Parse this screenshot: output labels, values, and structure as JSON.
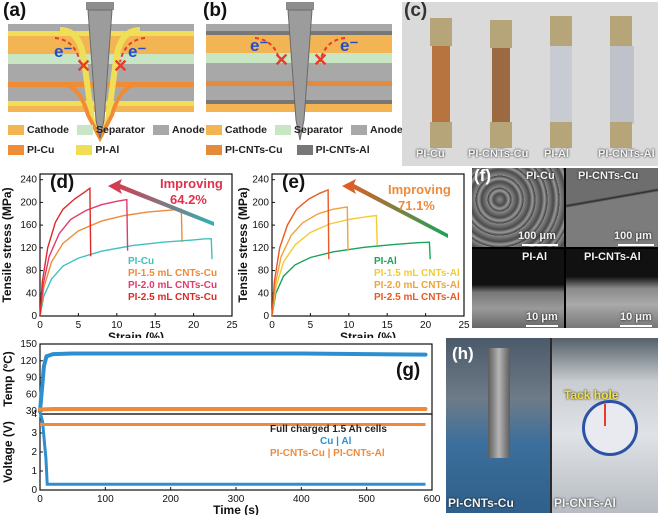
{
  "panels": {
    "a": {
      "label": "(a)",
      "electron_label": "e⁻"
    },
    "b": {
      "label": "(b)",
      "electron_label": "e⁻"
    },
    "c": {
      "label": "(c)",
      "photos": [
        "PI-Cu",
        "PI-CNTs-Cu",
        "PI-Al",
        "PI-CNTs-Al"
      ]
    },
    "d": {
      "label": "(d)",
      "annotation_line1": "Improving",
      "annotation_line2": "64.2%"
    },
    "e": {
      "label": "(e)",
      "annotation_line1": "Improving",
      "annotation_line2": "71.1%"
    },
    "f": {
      "label": "(f)",
      "tiles": [
        {
          "name": "PI-Cu",
          "scale": "100 μm"
        },
        {
          "name": "PI-CNTs-Cu",
          "scale": "100 μm"
        },
        {
          "name": "PI-Al",
          "scale": "10 μm"
        },
        {
          "name": "PI-CNTs-Al",
          "scale": "10 μm"
        }
      ]
    },
    "g": {
      "label": "(g)"
    },
    "h": {
      "label": "(h)",
      "tack_hole": "Tack hole",
      "left_caption": "PI-CNTs-Cu",
      "right_caption": "PI-CNTs-Al"
    }
  },
  "legend_top": {
    "left": [
      {
        "label": "Cathode",
        "color": "#f3b553"
      },
      {
        "label": "Separator",
        "color": "#c8e6c3"
      },
      {
        "label": "Anode",
        "color": "#a8a8a8"
      },
      {
        "label": "PI-Cu",
        "color": "#f08c34"
      },
      {
        "label": "PI-Al",
        "color": "#f1de57"
      }
    ],
    "right": [
      {
        "label": "Cathode",
        "color": "#f3b553"
      },
      {
        "label": "Separator",
        "color": "#c8e6c3"
      },
      {
        "label": "Anode",
        "color": "#a8a8a8"
      },
      {
        "label": "PI-CNTs-Cu",
        "color": "#e38a3b"
      },
      {
        "label": "PI-CNTs-Al",
        "color": "#777777"
      }
    ]
  },
  "chart_data": [
    {
      "type": "line",
      "panel": "d",
      "xlabel": "Strain (%)",
      "ylabel": "Tensile stress (MPa)",
      "xlim": [
        0,
        25
      ],
      "ylim": [
        0,
        250
      ],
      "xticks": [
        0,
        5,
        10,
        15,
        20,
        25
      ],
      "yticks": [
        0,
        40,
        80,
        120,
        160,
        200,
        240
      ],
      "series": [
        {
          "name": "PI-Cu",
          "color": "#3fc2bf",
          "points": [
            [
              0,
              0
            ],
            [
              0.5,
              35
            ],
            [
              1.5,
              65
            ],
            [
              3,
              88
            ],
            [
              5,
              102
            ],
            [
              8,
              114
            ],
            [
              12,
              124
            ],
            [
              16,
              130
            ],
            [
              20,
              134
            ],
            [
              21.5,
              136
            ],
            [
              22.3,
              136
            ],
            [
              22.4,
              100
            ]
          ]
        },
        {
          "name": "PI-1.5 mL CNTs-Cu",
          "color": "#f08a3a",
          "points": [
            [
              0,
              0
            ],
            [
              0.5,
              50
            ],
            [
              1.5,
              95
            ],
            [
              3,
              128
            ],
            [
              5,
              150
            ],
            [
              8,
              167
            ],
            [
              11,
              177
            ],
            [
              14,
              183
            ],
            [
              16.5,
              186
            ],
            [
              18.4,
              188
            ],
            [
              18.5,
              130
            ]
          ]
        },
        {
          "name": "PI-2.0 mL CNTs-Cu",
          "color": "#e23a6a",
          "points": [
            [
              0,
              0
            ],
            [
              0.4,
              55
            ],
            [
              1.2,
              105
            ],
            [
              2.5,
              145
            ],
            [
              4,
              170
            ],
            [
              6,
              186
            ],
            [
              8,
              196
            ],
            [
              10,
              202
            ],
            [
              11.3,
              205
            ],
            [
              11.4,
              115
            ]
          ]
        },
        {
          "name": "PI-2.5 mL CNTs-Cu",
          "color": "#dc2a2a",
          "points": [
            [
              0,
              0
            ],
            [
              0.3,
              60
            ],
            [
              1,
              120
            ],
            [
              2,
              165
            ],
            [
              3,
              188
            ],
            [
              4.5,
              206
            ],
            [
              5.8,
              218
            ],
            [
              6.5,
              225
            ],
            [
              6.6,
              105
            ]
          ]
        }
      ]
    },
    {
      "type": "line",
      "panel": "e",
      "xlabel": "Strain (%)",
      "ylabel": "Tensile stress (MPa)",
      "xlim": [
        0,
        25
      ],
      "ylim": [
        0,
        250
      ],
      "xticks": [
        0,
        5,
        10,
        15,
        20,
        25
      ],
      "yticks": [
        0,
        40,
        80,
        120,
        160,
        200,
        240
      ],
      "series": [
        {
          "name": "PI-Al",
          "color": "#1aa35a",
          "points": [
            [
              0,
              0
            ],
            [
              0.5,
              40
            ],
            [
              1.5,
              70
            ],
            [
              3,
              90
            ],
            [
              5,
              103
            ],
            [
              8,
              113
            ],
            [
              12,
              121
            ],
            [
              16,
              126
            ],
            [
              19,
              129
            ],
            [
              20.5,
              130
            ],
            [
              20.6,
              100
            ]
          ]
        },
        {
          "name": "PI-1.5 mL CNTs-Al",
          "color": "#f2cc30",
          "points": [
            [
              0,
              0
            ],
            [
              0.5,
              50
            ],
            [
              1.5,
              95
            ],
            [
              3,
              125
            ],
            [
              5,
              147
            ],
            [
              7.5,
              162
            ],
            [
              10,
              170
            ],
            [
              12.5,
              175
            ],
            [
              13.6,
              177
            ],
            [
              13.7,
              125
            ]
          ]
        },
        {
          "name": "PI-2.0 mL CNTs-Al",
          "color": "#f0a33a",
          "points": [
            [
              0,
              0
            ],
            [
              0.4,
              55
            ],
            [
              1.2,
              105
            ],
            [
              2.5,
              142
            ],
            [
              4,
              164
            ],
            [
              6,
              180
            ],
            [
              8,
              188
            ],
            [
              9.8,
              192
            ],
            [
              9.9,
              115
            ]
          ]
        },
        {
          "name": "PI-2.5 mL CNTs-Al",
          "color": "#ea5a23",
          "points": [
            [
              0,
              0
            ],
            [
              0.3,
              60
            ],
            [
              1,
              120
            ],
            [
              2,
              160
            ],
            [
              3.2,
              188
            ],
            [
              4.8,
              206
            ],
            [
              6.2,
              216
            ],
            [
              7.3,
              222
            ],
            [
              7.4,
              100
            ]
          ]
        }
      ]
    },
    {
      "type": "scatter",
      "panel": "g",
      "xlabel": "Time (s)",
      "ylabel_top": "Temp (ºC)",
      "ylabel_bottom": "Voltage (V)",
      "xlim": [
        0,
        600
      ],
      "xticks": [
        0,
        100,
        200,
        300,
        400,
        500,
        600
      ],
      "temp_ylim": [
        25,
        150
      ],
      "temp_yticks": [
        30,
        60,
        90,
        120,
        150
      ],
      "volt_ylim": [
        0,
        4
      ],
      "volt_yticks": [
        0,
        1,
        2,
        3,
        4
      ],
      "legend_title": "Full charged 1.5 Ah cells",
      "legend_line2_a": "Cu",
      "legend_line2_b": "Al",
      "legend_line3_a": "PI-CNTs-Cu",
      "legend_line3_b": "PI-CNTs-Al",
      "series": [
        {
          "name": "Cu",
          "color": "#2e8fd0",
          "temp": [
            [
              0,
              30
            ],
            [
              3,
              70
            ],
            [
              6,
              110
            ],
            [
              10,
              128
            ],
            [
              20,
              132
            ],
            [
              50,
              133
            ],
            [
              100,
              133
            ],
            [
              200,
              133
            ],
            [
              300,
              133
            ],
            [
              400,
              133
            ],
            [
              500,
              132
            ],
            [
              590,
              131
            ]
          ],
          "volt": [
            [
              0,
              4.1
            ],
            [
              4,
              3.6
            ],
            [
              7,
              2.4
            ],
            [
              9,
              1.7
            ],
            [
              11,
              0.3
            ],
            [
              20,
              0.3
            ],
            [
              100,
              0.3
            ],
            [
              300,
              0.3
            ],
            [
              590,
              0.3
            ]
          ]
        },
        {
          "name": "Al",
          "color": "#ef8a3b",
          "temp": [
            [
              0,
              33
            ],
            [
              20,
              34
            ],
            [
              100,
              34
            ],
            [
              200,
              34
            ],
            [
              300,
              34
            ],
            [
              400,
              34
            ],
            [
              500,
              34
            ],
            [
              590,
              34
            ]
          ],
          "volt": [
            [
              0,
              3.45
            ],
            [
              20,
              3.45
            ],
            [
              100,
              3.45
            ],
            [
              300,
              3.45
            ],
            [
              590,
              3.45
            ]
          ]
        }
      ]
    }
  ]
}
